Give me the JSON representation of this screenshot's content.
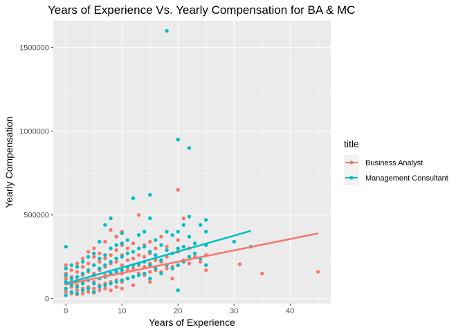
{
  "chart_data": {
    "type": "scatter",
    "title": "Years of Experience Vs. Yearly Compensation for BA & MC",
    "xlabel": "Years of Experience",
    "ylabel": "Yearly Compensation",
    "xlim": [
      -2.25,
      47.25
    ],
    "ylim": [
      -30000,
      1660000
    ],
    "x_ticks": [
      0,
      10,
      20,
      30,
      40
    ],
    "y_ticks": [
      0,
      500000,
      1000000,
      1500000
    ],
    "x_tick_labels": [
      "0",
      "10",
      "20",
      "30",
      "40"
    ],
    "y_tick_labels": [
      "0",
      "500000",
      "1000000",
      "1500000"
    ],
    "grid": true,
    "legend": {
      "title": "title",
      "placement": "right"
    },
    "series": [
      {
        "name": "Business Analyst",
        "color": "#F8766D",
        "trend": {
          "x": [
            0,
            45
          ],
          "y": [
            85000,
            390000
          ]
        },
        "points": [
          [
            0,
            60000
          ],
          [
            0,
            90000
          ],
          [
            0,
            120000
          ],
          [
            0,
            150000
          ],
          [
            0,
            200000
          ],
          [
            0,
            40000
          ],
          [
            1,
            70000
          ],
          [
            1,
            100000
          ],
          [
            1,
            130000
          ],
          [
            1,
            170000
          ],
          [
            1,
            30000
          ],
          [
            2,
            50000
          ],
          [
            2,
            80000
          ],
          [
            2,
            110000
          ],
          [
            2,
            160000
          ],
          [
            2,
            210000
          ],
          [
            2,
            25000
          ],
          [
            3,
            60000
          ],
          [
            3,
            100000
          ],
          [
            3,
            140000
          ],
          [
            3,
            190000
          ],
          [
            3,
            240000
          ],
          [
            3,
            30000
          ],
          [
            4,
            70000
          ],
          [
            4,
            110000
          ],
          [
            4,
            160000
          ],
          [
            4,
            210000
          ],
          [
            4,
            280000
          ],
          [
            4,
            40000
          ],
          [
            5,
            60000
          ],
          [
            5,
            100000
          ],
          [
            5,
            150000
          ],
          [
            5,
            200000
          ],
          [
            5,
            250000
          ],
          [
            5,
            300000
          ],
          [
            5,
            35000
          ],
          [
            6,
            80000
          ],
          [
            6,
            120000
          ],
          [
            6,
            170000
          ],
          [
            6,
            220000
          ],
          [
            6,
            270000
          ],
          [
            6,
            50000
          ],
          [
            7,
            90000
          ],
          [
            7,
            140000
          ],
          [
            7,
            190000
          ],
          [
            7,
            240000
          ],
          [
            7,
            340000
          ],
          [
            7,
            60000
          ],
          [
            8,
            100000
          ],
          [
            8,
            150000
          ],
          [
            8,
            210000
          ],
          [
            8,
            260000
          ],
          [
            8,
            410000
          ],
          [
            8,
            50000
          ],
          [
            9,
            110000
          ],
          [
            9,
            160000
          ],
          [
            9,
            220000
          ],
          [
            9,
            290000
          ],
          [
            9,
            370000
          ],
          [
            9,
            70000
          ],
          [
            10,
            100000
          ],
          [
            10,
            150000
          ],
          [
            10,
            200000
          ],
          [
            10,
            260000
          ],
          [
            10,
            320000
          ],
          [
            10,
            400000
          ],
          [
            10,
            60000
          ],
          [
            11,
            120000
          ],
          [
            11,
            170000
          ],
          [
            11,
            230000
          ],
          [
            11,
            300000
          ],
          [
            12,
            130000
          ],
          [
            12,
            180000
          ],
          [
            12,
            240000
          ],
          [
            12,
            330000
          ],
          [
            12,
            80000
          ],
          [
            13,
            150000
          ],
          [
            13,
            200000
          ],
          [
            13,
            260000
          ],
          [
            13,
            500000
          ],
          [
            14,
            140000
          ],
          [
            14,
            190000
          ],
          [
            14,
            250000
          ],
          [
            14,
            320000
          ],
          [
            15,
            160000
          ],
          [
            15,
            210000
          ],
          [
            15,
            270000
          ],
          [
            15,
            340000
          ],
          [
            15,
            100000
          ],
          [
            16,
            170000
          ],
          [
            16,
            230000
          ],
          [
            16,
            300000
          ],
          [
            17,
            160000
          ],
          [
            17,
            220000
          ],
          [
            17,
            370000
          ],
          [
            18,
            180000
          ],
          [
            18,
            250000
          ],
          [
            18,
            310000
          ],
          [
            19,
            190000
          ],
          [
            19,
            270000
          ],
          [
            19,
            120000
          ],
          [
            20,
            200000
          ],
          [
            20,
            280000
          ],
          [
            20,
            350000
          ],
          [
            20,
            650000
          ],
          [
            21,
            230000
          ],
          [
            21,
            480000
          ],
          [
            22,
            210000
          ],
          [
            22,
            300000
          ],
          [
            23,
            250000
          ],
          [
            24,
            220000
          ],
          [
            25,
            260000
          ],
          [
            25,
            170000
          ],
          [
            31,
            205000
          ],
          [
            33,
            310000
          ],
          [
            35,
            150000
          ],
          [
            45,
            160000
          ]
        ]
      },
      {
        "name": "Management Consultant",
        "color": "#00BFC4",
        "trend": {
          "x": [
            0,
            33
          ],
          "y": [
            90000,
            405000
          ]
        },
        "points": [
          [
            0,
            310000
          ],
          [
            0,
            20000
          ],
          [
            0,
            60000
          ],
          [
            0,
            100000
          ],
          [
            0,
            140000
          ],
          [
            0,
            180000
          ],
          [
            1,
            40000
          ],
          [
            1,
            80000
          ],
          [
            1,
            120000
          ],
          [
            1,
            200000
          ],
          [
            2,
            30000
          ],
          [
            2,
            70000
          ],
          [
            2,
            130000
          ],
          [
            2,
            190000
          ],
          [
            3,
            50000
          ],
          [
            3,
            90000
          ],
          [
            3,
            150000
          ],
          [
            3,
            220000
          ],
          [
            4,
            60000
          ],
          [
            4,
            110000
          ],
          [
            4,
            170000
          ],
          [
            4,
            250000
          ],
          [
            5,
            40000
          ],
          [
            5,
            90000
          ],
          [
            5,
            140000
          ],
          [
            5,
            200000
          ],
          [
            5,
            270000
          ],
          [
            6,
            70000
          ],
          [
            6,
            120000
          ],
          [
            6,
            180000
          ],
          [
            6,
            240000
          ],
          [
            6,
            340000
          ],
          [
            7,
            80000
          ],
          [
            7,
            130000
          ],
          [
            7,
            200000
          ],
          [
            7,
            260000
          ],
          [
            7,
            440000
          ],
          [
            8,
            90000
          ],
          [
            8,
            150000
          ],
          [
            8,
            220000
          ],
          [
            8,
            300000
          ],
          [
            8,
            480000
          ],
          [
            9,
            100000
          ],
          [
            9,
            160000
          ],
          [
            9,
            240000
          ],
          [
            9,
            320000
          ],
          [
            10,
            110000
          ],
          [
            10,
            170000
          ],
          [
            10,
            250000
          ],
          [
            10,
            330000
          ],
          [
            10,
            390000
          ],
          [
            11,
            120000
          ],
          [
            11,
            190000
          ],
          [
            11,
            270000
          ],
          [
            11,
            350000
          ],
          [
            12,
            130000
          ],
          [
            12,
            200000
          ],
          [
            12,
            280000
          ],
          [
            12,
            600000
          ],
          [
            13,
            140000
          ],
          [
            13,
            210000
          ],
          [
            13,
            300000
          ],
          [
            13,
            380000
          ],
          [
            14,
            150000
          ],
          [
            14,
            220000
          ],
          [
            14,
            310000
          ],
          [
            14,
            400000
          ],
          [
            15,
            120000
          ],
          [
            15,
            200000
          ],
          [
            15,
            280000
          ],
          [
            15,
            480000
          ],
          [
            15,
            620000
          ],
          [
            16,
            180000
          ],
          [
            16,
            260000
          ],
          [
            16,
            350000
          ],
          [
            17,
            150000
          ],
          [
            17,
            230000
          ],
          [
            17,
            320000
          ],
          [
            18,
            200000
          ],
          [
            18,
            290000
          ],
          [
            18,
            400000
          ],
          [
            18,
            1600000
          ],
          [
            19,
            180000
          ],
          [
            19,
            270000
          ],
          [
            19,
            380000
          ],
          [
            20,
            50000
          ],
          [
            20,
            200000
          ],
          [
            20,
            300000
          ],
          [
            20,
            400000
          ],
          [
            20,
            950000
          ],
          [
            21,
            220000
          ],
          [
            21,
            310000
          ],
          [
            21,
            440000
          ],
          [
            22,
            250000
          ],
          [
            22,
            370000
          ],
          [
            22,
            490000
          ],
          [
            22,
            900000
          ],
          [
            23,
            270000
          ],
          [
            23,
            330000
          ],
          [
            24,
            240000
          ],
          [
            24,
            440000
          ],
          [
            25,
            200000
          ],
          [
            25,
            320000
          ],
          [
            25,
            400000
          ],
          [
            25,
            470000
          ],
          [
            30,
            340000
          ],
          [
            33,
            310000
          ]
        ]
      }
    ]
  }
}
